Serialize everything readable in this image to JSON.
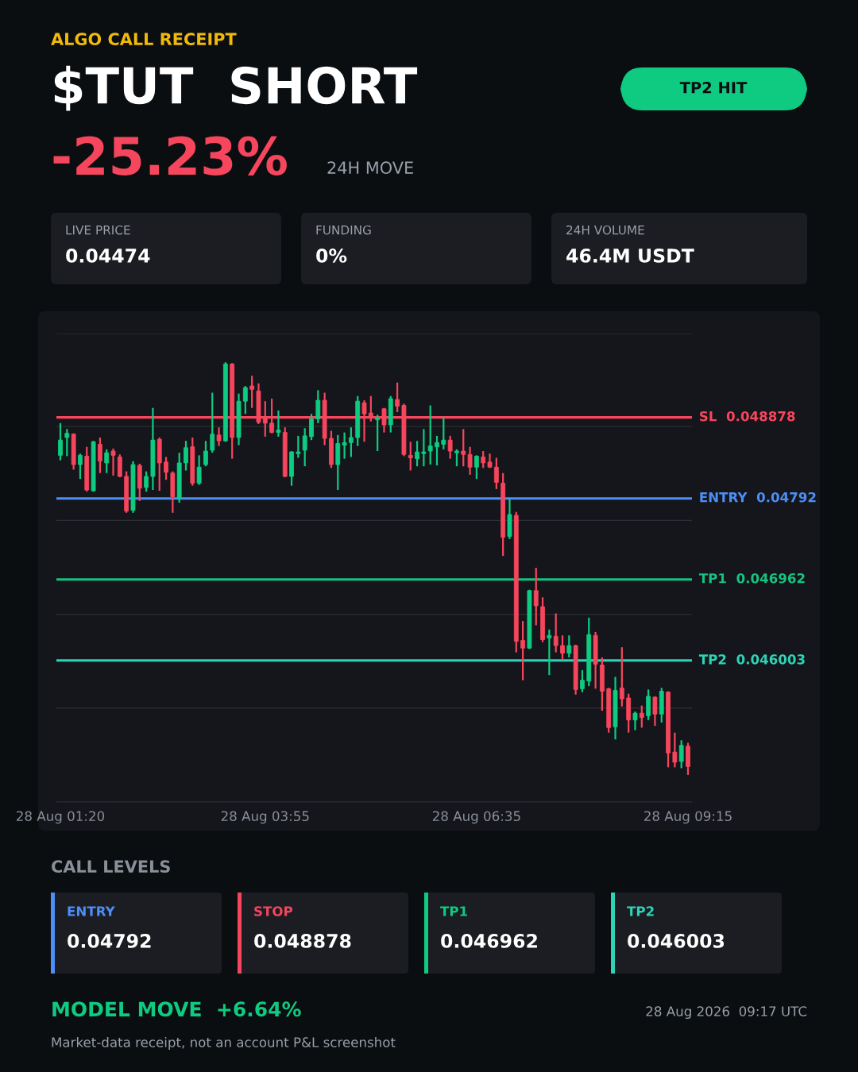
{
  "chart_data": {
    "type": "candlestick",
    "subtitle": "ALGO CALL RECEIPT",
    "title": "$TUT  SHORT",
    "annotations": [
      "TP2 HIT",
      "-25.23%",
      "24H MOVE",
      "LIVE PRICE",
      "0.04474",
      "FUNDING",
      "0%",
      "24H VOLUME",
      "46.4M USDT",
      "CALL LEVELS",
      "ENTRY",
      "0.04792",
      "STOP",
      "0.048878",
      "TP1",
      "0.046962",
      "TP2",
      "0.046003",
      "MODEL MOVE  +6.64%",
      "28 Aug 2026  09:17 UTC",
      "Market-data receipt, not an account P&L screenshot"
    ],
    "x": [
      "2026-08-28T01:20",
      "2026-08-28T01:25",
      "2026-08-28T01:30",
      "2026-08-28T01:35",
      "2026-08-28T01:40",
      "2026-08-28T01:45",
      "2026-08-28T01:50",
      "2026-08-28T01:55",
      "2026-08-28T02:00",
      "2026-08-28T02:05",
      "2026-08-28T02:10",
      "2026-08-28T02:15",
      "2026-08-28T02:20",
      "2026-08-28T02:25",
      "2026-08-28T02:30",
      "2026-08-28T02:35",
      "2026-08-28T02:40",
      "2026-08-28T02:45",
      "2026-08-28T02:50",
      "2026-08-28T02:55",
      "2026-08-28T03:00",
      "2026-08-28T03:05",
      "2026-08-28T03:10",
      "2026-08-28T03:15",
      "2026-08-28T03:20",
      "2026-08-28T03:25",
      "2026-08-28T03:30",
      "2026-08-28T03:35",
      "2026-08-28T03:40",
      "2026-08-28T03:45",
      "2026-08-28T03:50",
      "2026-08-28T03:55",
      "2026-08-28T04:00",
      "2026-08-28T04:05",
      "2026-08-28T04:10",
      "2026-08-28T04:15",
      "2026-08-28T04:20",
      "2026-08-28T04:25",
      "2026-08-28T04:30",
      "2026-08-28T04:35",
      "2026-08-28T04:40",
      "2026-08-28T04:45",
      "2026-08-28T04:50",
      "2026-08-28T04:55",
      "2026-08-28T05:00",
      "2026-08-28T05:05",
      "2026-08-28T05:10",
      "2026-08-28T05:15",
      "2026-08-28T05:20",
      "2026-08-28T05:25",
      "2026-08-28T05:30",
      "2026-08-28T05:35",
      "2026-08-28T05:40",
      "2026-08-28T05:45",
      "2026-08-28T05:50",
      "2026-08-28T05:55",
      "2026-08-28T06:00",
      "2026-08-28T06:05",
      "2026-08-28T06:10",
      "2026-08-28T06:15",
      "2026-08-28T06:20",
      "2026-08-28T06:25",
      "2026-08-28T06:30",
      "2026-08-28T06:35",
      "2026-08-28T06:40",
      "2026-08-28T06:45",
      "2026-08-28T06:50",
      "2026-08-28T06:55",
      "2026-08-28T07:00",
      "2026-08-28T07:05",
      "2026-08-28T07:10",
      "2026-08-28T07:15",
      "2026-08-28T07:20",
      "2026-08-28T07:25",
      "2026-08-28T07:30",
      "2026-08-28T07:35",
      "2026-08-28T07:40",
      "2026-08-28T07:45",
      "2026-08-28T07:50",
      "2026-08-28T07:55",
      "2026-08-28T08:00",
      "2026-08-28T08:05",
      "2026-08-28T08:10",
      "2026-08-28T08:15",
      "2026-08-28T08:20",
      "2026-08-28T08:25",
      "2026-08-28T08:30",
      "2026-08-28T08:35",
      "2026-08-28T08:40",
      "2026-08-28T08:45",
      "2026-08-28T08:50",
      "2026-08-28T08:55",
      "2026-08-28T09:00",
      "2026-08-28T09:05",
      "2026-08-28T09:10",
      "2026-08-28T09:15"
    ],
    "ohlc": [
      [
        0.04843,
        0.04881,
        0.04837,
        0.04861
      ],
      [
        0.04864,
        0.04874,
        0.04842,
        0.04869
      ],
      [
        0.04868,
        0.04869,
        0.04826,
        0.04832
      ],
      [
        0.04832,
        0.04845,
        0.04815,
        0.04843
      ],
      [
        0.04842,
        0.04853,
        0.048,
        0.04802
      ],
      [
        0.04801,
        0.0486,
        0.048,
        0.04859
      ],
      [
        0.04856,
        0.04864,
        0.04822,
        0.04836
      ],
      [
        0.04834,
        0.0485,
        0.04822,
        0.04846
      ],
      [
        0.04848,
        0.04851,
        0.04819,
        0.04843
      ],
      [
        0.04841,
        0.04844,
        0.04817,
        0.04818
      ],
      [
        0.04818,
        0.04824,
        0.04775,
        0.04777
      ],
      [
        0.04778,
        0.04836,
        0.04775,
        0.04832
      ],
      [
        0.04831,
        0.04833,
        0.04789,
        0.04804
      ],
      [
        0.04805,
        0.04824,
        0.048,
        0.04818
      ],
      [
        0.04818,
        0.04899,
        0.04802,
        0.04861
      ],
      [
        0.04862,
        0.04864,
        0.04801,
        0.04834
      ],
      [
        0.04835,
        0.04841,
        0.04814,
        0.04823
      ],
      [
        0.04822,
        0.04824,
        0.04775,
        0.04794
      ],
      [
        0.04792,
        0.04846,
        0.04787,
        0.04834
      ],
      [
        0.04834,
        0.0486,
        0.04825,
        0.04852
      ],
      [
        0.04853,
        0.04864,
        0.04807,
        0.0481
      ],
      [
        0.0481,
        0.04843,
        0.04808,
        0.04829
      ],
      [
        0.04832,
        0.0486,
        0.0483,
        0.04848
      ],
      [
        0.04849,
        0.04917,
        0.04846,
        0.04868
      ],
      [
        0.04867,
        0.04876,
        0.04854,
        0.0486
      ],
      [
        0.0486,
        0.04953,
        0.04859,
        0.04951
      ],
      [
        0.04951,
        0.04952,
        0.04839,
        0.04864
      ],
      [
        0.04864,
        0.04916,
        0.04855,
        0.04907
      ],
      [
        0.04907,
        0.04925,
        0.04892,
        0.04923
      ],
      [
        0.04925,
        0.04937,
        0.04899,
        0.04921
      ],
      [
        0.04919,
        0.04928,
        0.0488,
        0.04882
      ],
      [
        0.04887,
        0.04907,
        0.04865,
        0.04881
      ],
      [
        0.04881,
        0.0491,
        0.04869,
        0.0487
      ],
      [
        0.0487,
        0.04896,
        0.04865,
        0.04873
      ],
      [
        0.0487,
        0.04876,
        0.04817,
        0.04818
      ],
      [
        0.04818,
        0.04848,
        0.04807,
        0.04847
      ],
      [
        0.04845,
        0.04866,
        0.0484,
        0.04847
      ],
      [
        0.04849,
        0.04875,
        0.0483,
        0.04866
      ],
      [
        0.04865,
        0.04892,
        0.04861,
        0.04886
      ],
      [
        0.04886,
        0.0492,
        0.04881,
        0.04908
      ],
      [
        0.04908,
        0.04917,
        0.04855,
        0.04863
      ],
      [
        0.04863,
        0.04872,
        0.04828,
        0.04832
      ],
      [
        0.04832,
        0.04867,
        0.04802,
        0.04857
      ],
      [
        0.04855,
        0.0487,
        0.04839,
        0.04858
      ],
      [
        0.04858,
        0.04876,
        0.04841,
        0.04864
      ],
      [
        0.04864,
        0.04913,
        0.04854,
        0.04907
      ],
      [
        0.04905,
        0.04908,
        0.04859,
        0.04892
      ],
      [
        0.04893,
        0.04913,
        0.04883,
        0.04887
      ],
      [
        0.04885,
        0.04891,
        0.04848,
        0.04887
      ],
      [
        0.04898,
        0.04899,
        0.0487,
        0.04879
      ],
      [
        0.04879,
        0.04913,
        0.0487,
        0.0491
      ],
      [
        0.04909,
        0.04929,
        0.04894,
        0.04901
      ],
      [
        0.04902,
        0.04904,
        0.04842,
        0.04844
      ],
      [
        0.04843,
        0.04859,
        0.04825,
        0.0484
      ],
      [
        0.04839,
        0.0486,
        0.0483,
        0.04847
      ],
      [
        0.04845,
        0.04874,
        0.0483,
        0.04847
      ],
      [
        0.04848,
        0.04902,
        0.04832,
        0.04854
      ],
      [
        0.04853,
        0.04866,
        0.04831,
        0.04858
      ],
      [
        0.04856,
        0.04887,
        0.0485,
        0.04861
      ],
      [
        0.04861,
        0.04866,
        0.04839,
        0.04848
      ],
      [
        0.04846,
        0.0485,
        0.0483,
        0.04848
      ],
      [
        0.04848,
        0.04874,
        0.0483,
        0.04844
      ],
      [
        0.04844,
        0.04853,
        0.0482,
        0.04829
      ],
      [
        0.04829,
        0.04843,
        0.04815,
        0.04842
      ],
      [
        0.04841,
        0.04848,
        0.04828,
        0.04834
      ],
      [
        0.04835,
        0.04845,
        0.04828,
        0.04829
      ],
      [
        0.04829,
        0.0484,
        0.04803,
        0.04811
      ],
      [
        0.0481,
        0.04822,
        0.04724,
        0.04746
      ],
      [
        0.04747,
        0.04791,
        0.04744,
        0.04773
      ],
      [
        0.04772,
        0.04776,
        0.0461,
        0.04623
      ],
      [
        0.04624,
        0.04647,
        0.04577,
        0.04615
      ],
      [
        0.04615,
        0.04684,
        0.04614,
        0.04683
      ],
      [
        0.04683,
        0.0471,
        0.04642,
        0.04665
      ],
      [
        0.04664,
        0.04675,
        0.04622,
        0.04625
      ],
      [
        0.04627,
        0.04637,
        0.04583,
        0.0463
      ],
      [
        0.04629,
        0.04656,
        0.0461,
        0.04618
      ],
      [
        0.04618,
        0.0463,
        0.04601,
        0.04609
      ],
      [
        0.04609,
        0.0463,
        0.04604,
        0.04618
      ],
      [
        0.04618,
        0.04619,
        0.0456,
        0.04566
      ],
      [
        0.04567,
        0.04589,
        0.04563,
        0.04577
      ],
      [
        0.04576,
        0.04651,
        0.0457,
        0.04631
      ],
      [
        0.0463,
        0.04634,
        0.04567,
        0.04596
      ],
      [
        0.04595,
        0.04604,
        0.04541,
        0.04564
      ],
      [
        0.04567,
        0.04568,
        0.04515,
        0.04521
      ],
      [
        0.04522,
        0.04581,
        0.04507,
        0.04565
      ],
      [
        0.04568,
        0.04616,
        0.04546,
        0.04555
      ],
      [
        0.04556,
        0.04561,
        0.04515,
        0.0453
      ],
      [
        0.0453,
        0.0454,
        0.04518,
        0.04538
      ],
      [
        0.04538,
        0.04547,
        0.04521,
        0.04533
      ],
      [
        0.04535,
        0.04566,
        0.0453,
        0.04558
      ],
      [
        0.04557,
        0.04558,
        0.04523,
        0.04537
      ],
      [
        0.04537,
        0.04568,
        0.04527,
        0.04564
      ],
      [
        0.04563,
        0.04564,
        0.04474,
        0.04491
      ],
      [
        0.04492,
        0.04515,
        0.04474,
        0.0448
      ],
      [
        0.04481,
        0.04506,
        0.04473,
        0.045
      ],
      [
        0.04499,
        0.04503,
        0.04465,
        0.04475
      ]
    ],
    "colors": [
      "#0ecb81",
      "#0ecb81",
      "#f6465d",
      "#0ecb81",
      "#f6465d",
      "#0ecb81",
      "#f6465d",
      "#0ecb81",
      "#f6465d",
      "#f6465d",
      "#f6465d",
      "#0ecb81",
      "#f6465d",
      "#0ecb81",
      "#0ecb81",
      "#f6465d",
      "#f6465d",
      "#f6465d",
      "#0ecb81",
      "#0ecb81",
      "#f6465d",
      "#0ecb81",
      "#0ecb81",
      "#0ecb81",
      "#f6465d",
      "#0ecb81",
      "#f6465d",
      "#0ecb81",
      "#0ecb81",
      "#f6465d",
      "#f6465d",
      "#f6465d",
      "#f6465d",
      "#0ecb81",
      "#f6465d",
      "#0ecb81",
      "#0ecb81",
      "#0ecb81",
      "#0ecb81",
      "#0ecb81",
      "#f6465d",
      "#f6465d",
      "#0ecb81",
      "#0ecb81",
      "#0ecb81",
      "#0ecb81",
      "#f6465d",
      "#f6465d",
      "#0ecb81",
      "#f6465d",
      "#0ecb81",
      "#f6465d",
      "#f6465d",
      "#f6465d",
      "#0ecb81",
      "#0ecb81",
      "#0ecb81",
      "#0ecb81",
      "#0ecb81",
      "#f6465d",
      "#0ecb81",
      "#f6465d",
      "#f6465d",
      "#0ecb81",
      "#f6465d",
      "#f6465d",
      "#f6465d",
      "#f6465d",
      "#0ecb81",
      "#f6465d",
      "#f6465d",
      "#0ecb81",
      "#f6465d",
      "#f6465d",
      "#0ecb81",
      "#f6465d",
      "#f6465d",
      "#0ecb81",
      "#f6465d",
      "#0ecb81",
      "#0ecb81",
      "#f6465d",
      "#f6465d",
      "#f6465d",
      "#0ecb81",
      "#f6465d",
      "#f6465d",
      "#0ecb81",
      "#f6465d",
      "#0ecb81",
      "#f6465d",
      "#0ecb81",
      "#f6465d",
      "#f6465d",
      "#0ecb81",
      "#f6465d"
    ],
    "xlim": [
      "2026-08-28T01:17",
      "2026-08-28T09:18"
    ],
    "xticks": [
      {
        "value": "2026-08-28T01:20",
        "label": "28 Aug 01:20"
      },
      {
        "value": "2026-08-28T03:55",
        "label": "28 Aug 03:55"
      },
      {
        "value": "2026-08-28T06:35",
        "label": "28 Aug 06:35"
      },
      {
        "value": "2026-08-28T09:15",
        "label": "28 Aug 09:15"
      }
    ],
    "ylim": [
      0.04433,
      0.04987
    ],
    "yticks": [
      {
        "value": 0.04433,
        "label": null
      },
      {
        "value": 0.04544,
        "label": null
      },
      {
        "value": 0.04655,
        "label": null
      },
      {
        "value": 0.04766,
        "label": null
      },
      {
        "value": 0.04877,
        "label": null
      },
      {
        "value": 0.04987,
        "label": null
      }
    ],
    "ref_lines": [
      {
        "axis": "y",
        "value": 0.048878,
        "label": "SL  0.048878",
        "color": "#f6465d"
      },
      {
        "axis": "y",
        "value": 0.04792,
        "label": "ENTRY  0.04792",
        "color": "#4d8ef7"
      },
      {
        "axis": "y",
        "value": 0.046962,
        "label": "TP1  0.046962",
        "color": "#17c27f"
      },
      {
        "axis": "y",
        "value": 0.046003,
        "label": "TP2  0.046003",
        "color": "#2ed3b7"
      }
    ],
    "grid": "y",
    "tick_labels": "x"
  }
}
